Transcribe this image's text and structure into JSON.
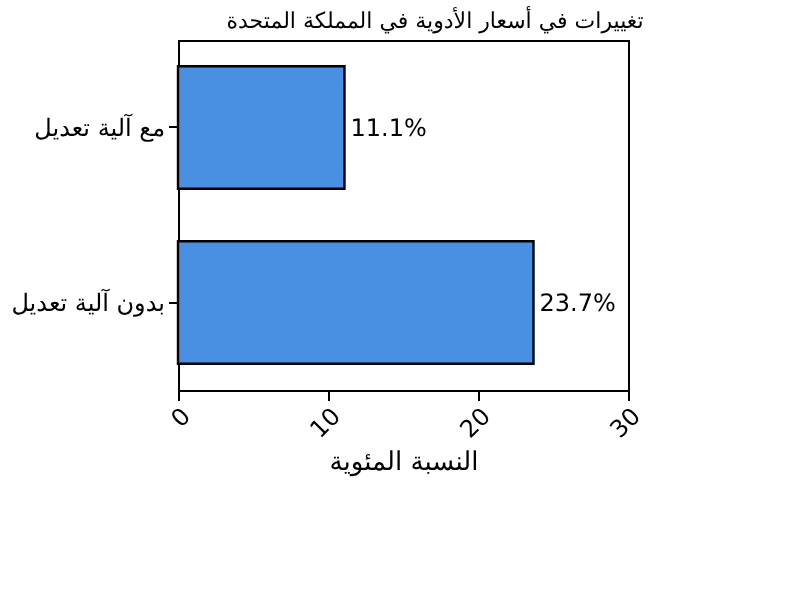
{
  "chart_data": {
    "type": "bar",
    "orientation": "horizontal",
    "title": "تغييرات في أسعار الأدوية في المملكة المتحدة",
    "xlabel": "النسبة المئوية",
    "categories": [
      "مع آلية تعديل",
      "بدون آلية تعديل"
    ],
    "values": [
      11.1,
      23.7
    ],
    "value_labels": [
      "11.1%",
      "23.7%"
    ],
    "color": "#4a90e2",
    "xlim": [
      0,
      30
    ],
    "xticks": [
      0,
      10,
      20,
      30
    ],
    "grid": false
  }
}
